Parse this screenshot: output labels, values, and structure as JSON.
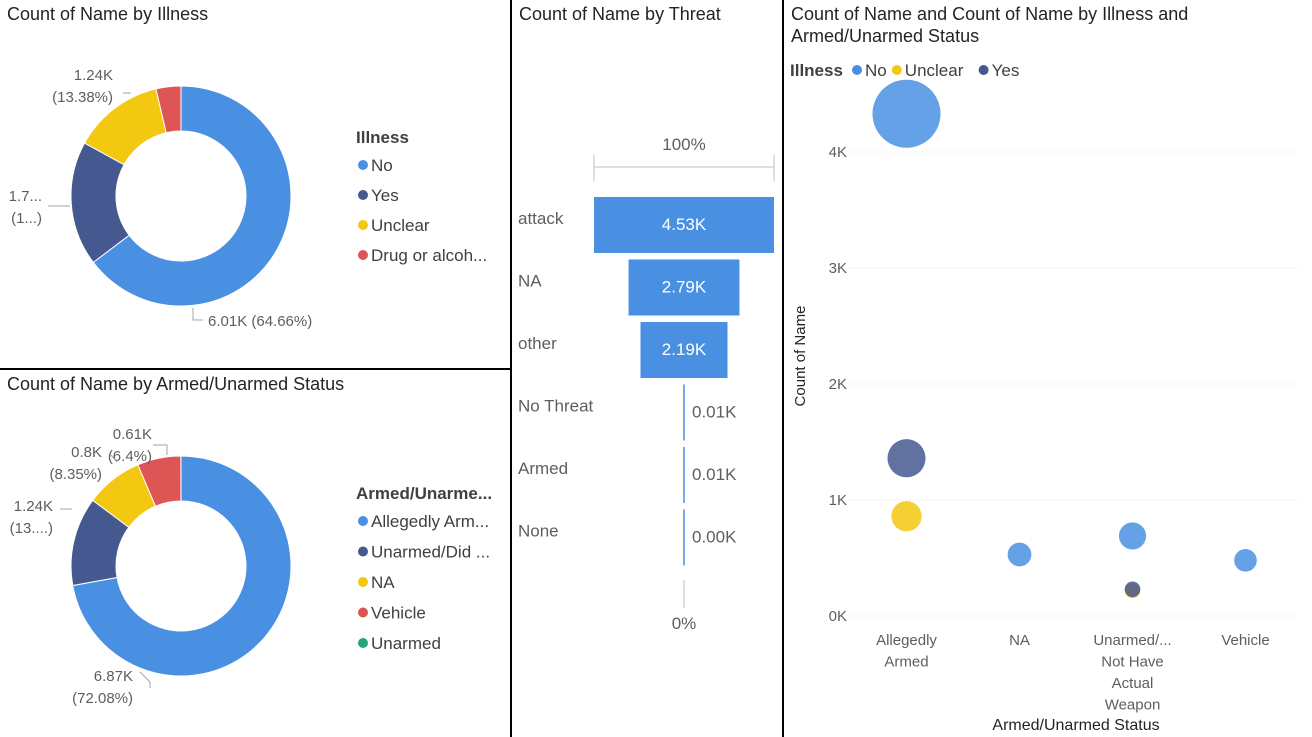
{
  "illness_panel": {
    "title": "Count of Name by Illness",
    "legend_title": "Illness",
    "legend": [
      {
        "label": "No",
        "color": "#4A90E2"
      },
      {
        "label": "Yes",
        "color": "#455990"
      },
      {
        "label": "Unclear",
        "color": "#F2C811"
      },
      {
        "label": "Drug or alcoh...",
        "color": "#DD5555"
      }
    ],
    "labels": [
      {
        "l1": "1.24K",
        "l2": "(13.38%)"
      },
      {
        "l1": "1.7...",
        "l2": "(1...)"
      },
      {
        "l1": "6.01K (64.66%)",
        "l2": ""
      }
    ]
  },
  "armed_panel": {
    "title": "Count of Name by Armed/Unarmed Status",
    "legend_title": "Armed/Unarme...",
    "legend": [
      {
        "label": "Allegedly Arm...",
        "color": "#4A90E2"
      },
      {
        "label": "Unarmed/Did ...",
        "color": "#455990"
      },
      {
        "label": "NA",
        "color": "#F2C811"
      },
      {
        "label": "Vehicle",
        "color": "#DD5555"
      },
      {
        "label": "Unarmed",
        "color": "#27A37A"
      }
    ],
    "labels": [
      {
        "l1": "0.61K",
        "l2": "(6.4%)"
      },
      {
        "l1": "0.8K",
        "l2": "(8.35%)"
      },
      {
        "l1": "1.24K",
        "l2": "(13....)"
      },
      {
        "l1": "6.87K",
        "l2": "(72.08%)"
      }
    ]
  },
  "threat_panel": {
    "title": "Count of Name by Threat",
    "top_label": "100%",
    "bottom_label": "0%"
  },
  "scatter_panel": {
    "title_line1": "Count of Name and Count of Name by Illness and",
    "title_line2": "Armed/Unarmed Status",
    "legend_title": "Illness"
  },
  "chart_data": [
    {
      "type": "pie",
      "title": "Count of Name by Illness",
      "legend_title": "Illness",
      "categories": [
        "No",
        "Yes",
        "Unclear",
        "Drug or alcoh..."
      ],
      "values": [
        6010,
        1700,
        1240,
        340
      ],
      "data_labels": [
        "6.01K (64.66%)",
        "1.7... (1...)",
        "1.24K (13.38%)",
        ""
      ],
      "colors": [
        "#4A90E2",
        "#455990",
        "#F2C811",
        "#DD5555"
      ],
      "donut": true
    },
    {
      "type": "pie",
      "title": "Count of Name by Armed/Unarmed Status",
      "legend_title": "Armed/Unarme...",
      "categories": [
        "Allegedly Arm...",
        "Unarmed/Did ...",
        "NA",
        "Vehicle",
        "Unarmed"
      ],
      "values": [
        6870,
        1240,
        800,
        610,
        1
      ],
      "data_labels": [
        "6.87K (72.08%)",
        "1.24K (13....)",
        "0.8K (8.35%)",
        "0.61K (6.4%)",
        ""
      ],
      "colors": [
        "#4A90E2",
        "#455990",
        "#F2C811",
        "#DD5555",
        "#27A37A"
      ],
      "donut": true
    },
    {
      "type": "bar",
      "subtype": "funnel",
      "title": "Count of Name by Threat",
      "categories": [
        "attack",
        "NA",
        "other",
        "No Threat",
        "Armed",
        "None"
      ],
      "values": [
        4530,
        2790,
        2190,
        10,
        10,
        0
      ],
      "value_labels": [
        "4.53K",
        "2.79K",
        "2.19K",
        "0.01K",
        "0.01K",
        "0.00K"
      ],
      "color": "#4A90E2"
    },
    {
      "type": "scatter",
      "title": "Count of Name and Count of Name by Illness and Armed/Unarmed Status",
      "xlabel": "Armed/Unarmed Status",
      "ylabel": "Count of Name",
      "categories": [
        "Allegedly Armed",
        "NA",
        "Unarmed/... Not Have Actual Weapon",
        "Vehicle"
      ],
      "category_lines": [
        [
          "Allegedly",
          "Armed"
        ],
        [
          "NA"
        ],
        [
          "Unarmed/...",
          "Not Have",
          "Actual",
          "Weapon"
        ],
        [
          "Vehicle"
        ]
      ],
      "yticks": [
        "0K",
        "1K",
        "2K",
        "3K",
        "4K"
      ],
      "ylim": [
        0,
        4600
      ],
      "grid": true,
      "legend_position": "top-left",
      "series": [
        {
          "name": "No",
          "color": "#4A90E2",
          "values": [
            4330,
            530,
            690,
            480
          ]
        },
        {
          "name": "Unclear",
          "color": "#F2C811",
          "values": [
            860,
            null,
            220,
            null
          ]
        },
        {
          "name": "Yes",
          "color": "#455990",
          "values": [
            1360,
            null,
            230,
            null
          ]
        }
      ]
    }
  ]
}
